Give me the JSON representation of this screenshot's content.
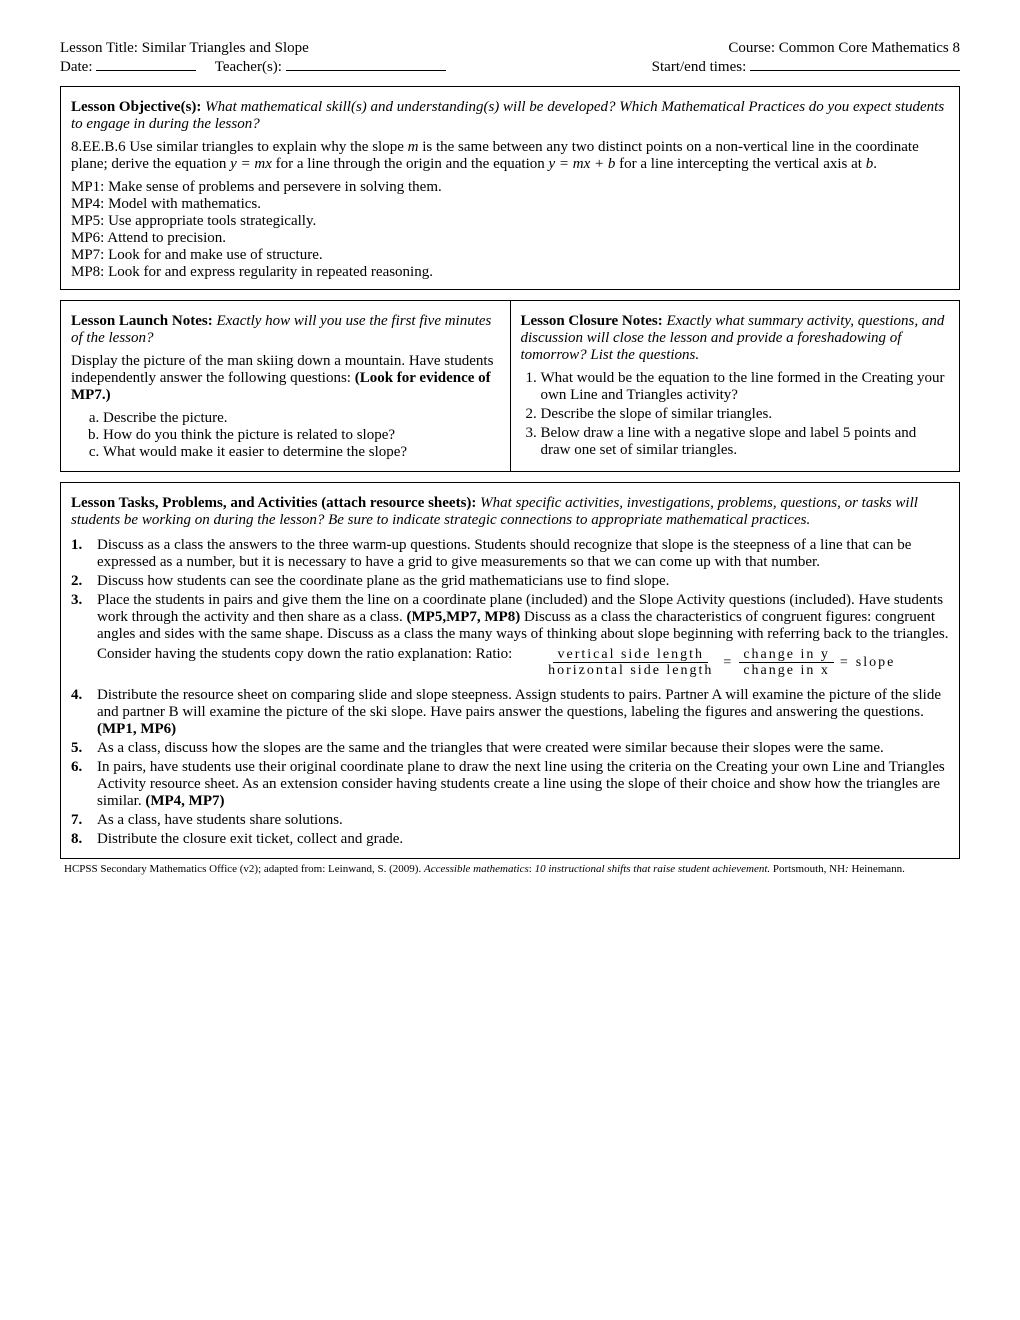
{
  "header": {
    "lesson_title_label": "Lesson Title:",
    "lesson_title": "Similar Triangles and Slope",
    "course_label": "Course:",
    "course": "Common Core Mathematics 8",
    "date_label": "Date:",
    "teacher_label": "Teacher(s):",
    "times_label": "Start/end times:"
  },
  "objective": {
    "heading": "Lesson Objective(s):",
    "prompt": "What mathematical skill(s) and understanding(s) will be developed? Which Mathematical Practices do you expect students to engage in during the lesson?",
    "standard_pre": "8.EE.B.6  Use similar triangles to explain why the slope ",
    "m": "m",
    "standard_mid1": " is the same between any two distinct points on a non-vertical line in the coordinate plane; derive the equation ",
    "eq1": "y = mx",
    "standard_mid2": " for a line through the origin and the equation ",
    "eq2": "y = mx + b",
    "standard_mid3": "  for a line intercepting the vertical axis at ",
    "b": "b",
    "period": ".",
    "mp1": "MP1:  Make sense of problems and persevere in solving them.",
    "mp4": "MP4:  Model with mathematics.",
    "mp5": "MP5:  Use appropriate tools strategically.",
    "mp6": "MP6:  Attend to precision.",
    "mp7": "MP7:  Look for and make use of structure.",
    "mp8": "MP8:  Look for and express regularity in repeated reasoning."
  },
  "launch": {
    "heading": "Lesson Launch Notes:",
    "prompt": "Exactly how will you use the first five minutes of the lesson?",
    "para1": "Display the picture of the man skiing down a mountain.  Have students independently answer the following questions: ",
    "bold": "(Look for evidence of MP7.)",
    "a": "Describe the picture.",
    "b": "How do you think the picture is related to slope?",
    "c": "What would make it easier to determine the slope?"
  },
  "closure": {
    "heading": "Lesson Closure Notes:",
    "prompt": "Exactly what summary activity, questions, and discussion will close the lesson and provide a foreshadowing of tomorrow? List the questions.",
    "q1": "What would be the equation to the line formed in the Creating your own Line and Triangles activity?",
    "q2": "Describe the slope of similar triangles.",
    "q3": "Below draw a line with a negative slope and label 5 points and draw one set of similar triangles."
  },
  "tasks": {
    "heading": "Lesson Tasks, Problems, and Activities (attach resource sheets):",
    "prompt": "What specific activities, investigations, problems, questions, or tasks will students be working on during the lesson? Be sure to indicate strategic connections to appropriate mathematical practices.",
    "t1": "Discuss as a class the answers to the three warm-up questions.  Students should recognize that slope is the steepness of a line that can be expressed as a number, but it is necessary to have a grid to give measurements so that we can come up with that number.",
    "t2": "Discuss how students can see the coordinate plane as the grid mathematicians use to find slope.",
    "t3a": "Place the students in pairs and give them the line on a coordinate plane (included) and the Slope Activity questions (included).  Have students work through the activity and then share as a class.  ",
    "t3b": "(MP5,MP7, MP8)",
    "t3c": "Discuss as a class the characteristics of congruent figures:  congruent angles and sides with the same shape.  Discuss as a class the many ways of thinking about slope beginning with referring back to the triangles.  Consider having the students copy down the ratio explanation:  Ratio:",
    "ratio": {
      "num1": "vertical side length",
      "den1": "horizontal side length",
      "num2": "change in y",
      "den2": "change in x",
      "slope": "slope"
    },
    "t4a": "Distribute the resource sheet on comparing slide and slope steepness.  Assign students to pairs.  Partner A will examine the picture of the slide and partner B will examine the picture of the ski slope.  Have pairs answer the questions, labeling the figures and answering the questions.  ",
    "t4b": "(MP1, MP6)",
    "t5": "As a class, discuss how the slopes are the same and the triangles that were created were similar because their slopes were the same.",
    "t6a": "In pairs, have students use their original coordinate plane to draw the next line using the criteria on the Creating your own Line and Triangles Activity resource sheet.  As an extension consider having students create a line using the slope of their choice and show how the triangles are similar.  ",
    "t6b": "(MP4, MP7)",
    "t7": "As a class, have students share solutions.",
    "t8": "Distribute the closure exit ticket, collect and grade."
  },
  "footer": {
    "pre": "HCPSS Secondary Mathematics Office (v2); adapted from: Leinwand, S. (2009). ",
    "title": "Accessible mathematics",
    "mid": ": ",
    "sub": "10 instructional shifts that raise student achievement.",
    "post": " Portsmouth, NH",
    "pub": ": ",
    "pub2": "Heinemann."
  }
}
